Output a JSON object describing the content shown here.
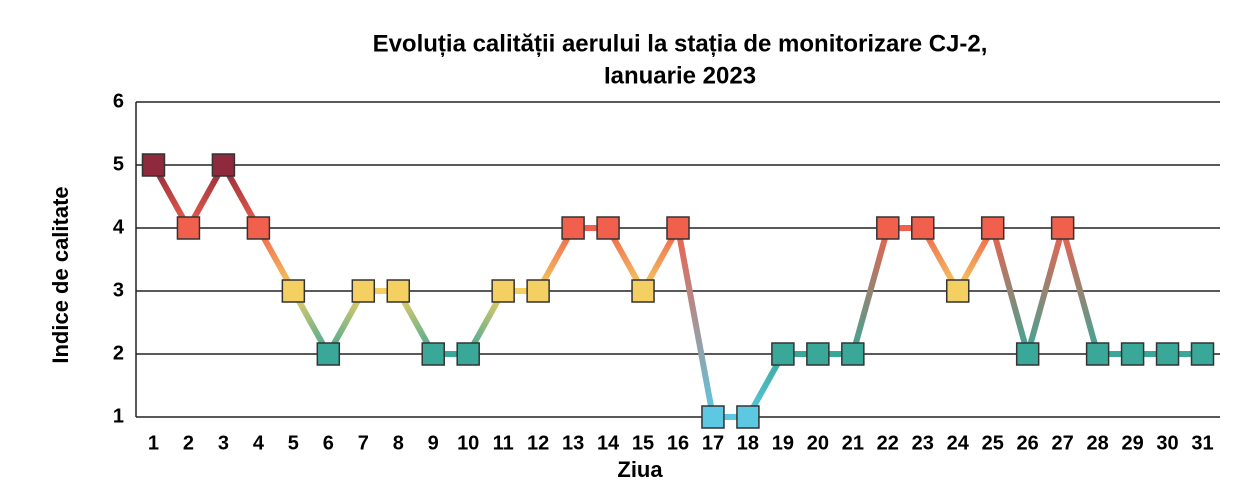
{
  "chart_data": {
    "type": "line",
    "title": [
      "Evoluția calității aerului la stația de monitorizare CJ-2,",
      "Ianuarie 2023"
    ],
    "x_label": "Ziua",
    "y_label": "Indice de calitate",
    "categories": [
      "1",
      "2",
      "3",
      "4",
      "5",
      "6",
      "7",
      "8",
      "9",
      "10",
      "11",
      "12",
      "13",
      "14",
      "15",
      "16",
      "17",
      "18",
      "19",
      "20",
      "21",
      "22",
      "23",
      "24",
      "25",
      "26",
      "27",
      "28",
      "29",
      "30",
      "31"
    ],
    "series": [
      {
        "values": [
          5,
          4,
          5,
          4,
          3,
          2,
          3,
          3,
          2,
          2,
          3,
          3,
          4,
          4,
          3,
          4,
          1,
          1,
          2,
          2,
          2,
          4,
          4,
          3,
          4,
          2,
          4,
          2,
          2,
          2,
          2
        ],
        "marker_colors": [
          "#8e2a3c",
          "#f0604c",
          "#8e2a3c",
          "#f0604c",
          "#f4cf62",
          "#3aa898",
          "#f4cf62",
          "#f4cf62",
          "#3aa898",
          "#3aa898",
          "#f4cf62",
          "#f4cf62",
          "#f0604c",
          "#f0604c",
          "#f4cf62",
          "#f0604c",
          "#5cc8e2",
          "#5cc8e2",
          "#3aa898",
          "#3aa898",
          "#3aa898",
          "#f0604c",
          "#f0604c",
          "#f4cf62",
          "#f0604c",
          "#3aa898",
          "#f0604c",
          "#3aa898",
          "#3aa898",
          "#3aa898",
          "#3aa898"
        ]
      }
    ],
    "ylim": [
      1,
      6
    ],
    "yticks": [
      1,
      2,
      3,
      4,
      5,
      6
    ],
    "grid": true
  }
}
